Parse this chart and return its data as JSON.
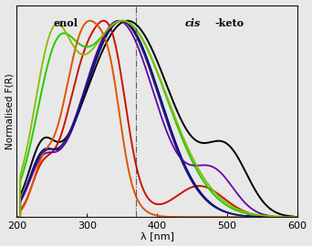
{
  "xlim": [
    200,
    600
  ],
  "ylim": [
    0,
    1.08
  ],
  "xlabel": "λ [nm]",
  "ylabel": "Normalised F(R)",
  "enol_label": "enol",
  "keto_label_italic": "cis",
  "keto_label_normal": "-keto",
  "dashed_line_x": 370,
  "background_color": "#e8e8e8",
  "tick_color": "#111111",
  "spine_color": "#111111"
}
